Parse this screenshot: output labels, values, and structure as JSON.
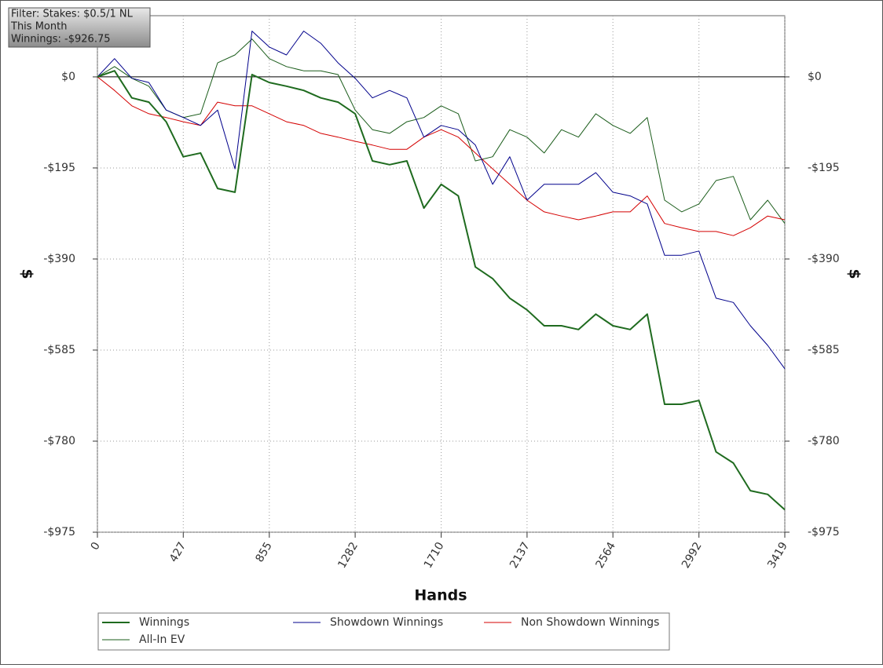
{
  "chart_data": {
    "type": "line",
    "annotations": [
      "Filter: Stakes: $0.5/1 NL",
      "This Month",
      "Winnings: -$926.75"
    ],
    "x_label": "Hands",
    "y_label": "$",
    "x": [
      0,
      85,
      171,
      256,
      342,
      427,
      513,
      598,
      684,
      769,
      855,
      940,
      1026,
      1111,
      1197,
      1282,
      1368,
      1453,
      1539,
      1624,
      1710,
      1795,
      1880,
      1966,
      2051,
      2137,
      2222,
      2308,
      2393,
      2479,
      2564,
      2650,
      2735,
      2821,
      2906,
      2992,
      3077,
      3163,
      3248,
      3334,
      3419
    ],
    "series": [
      {
        "name": "Winnings",
        "color": "#1f6b1f",
        "line_width": 2,
        "values": [
          0,
          13,
          -45,
          -54,
          -96,
          -171,
          -163,
          -239,
          -247,
          5,
          -12,
          -20,
          -29,
          -45,
          -54,
          -79,
          -180,
          -188,
          -180,
          -281,
          -230,
          -255,
          -407,
          -432,
          -474,
          -499,
          -533,
          -533,
          -541,
          -508,
          -533,
          -541,
          -508,
          -701,
          -701,
          -693,
          -803,
          -827,
          -886,
          -894,
          -927
        ]
      },
      {
        "name": "Showdown Winnings",
        "color": "#00008b",
        "line_width": 1,
        "values": [
          0,
          39,
          -3,
          -12,
          -71,
          -87,
          -104,
          -71,
          -197,
          98,
          64,
          47,
          98,
          72,
          30,
          -3,
          -45,
          -29,
          -45,
          -129,
          -104,
          -113,
          -146,
          -230,
          -171,
          -264,
          -230,
          -230,
          -230,
          -205,
          -247,
          -255,
          -272,
          -382,
          -382,
          -373,
          -474,
          -483,
          -533,
          -575,
          -625
        ]
      },
      {
        "name": "Non Showdown Winnings",
        "color": "#d40000",
        "line_width": 1,
        "values": [
          0,
          -29,
          -62,
          -79,
          -87,
          -96,
          -104,
          -54,
          -62,
          -62,
          -79,
          -96,
          -104,
          -121,
          -129,
          -138,
          -146,
          -155,
          -155,
          -129,
          -113,
          -129,
          -163,
          -197,
          -230,
          -264,
          -289,
          -298,
          -306,
          -298,
          -289,
          -289,
          -255,
          -314,
          -323,
          -331,
          -331,
          -340,
          -323,
          -298,
          -306
        ]
      },
      {
        "name": "All-In EV",
        "color": "#1a5c1a",
        "line_width": 1,
        "values": [
          0,
          22,
          -3,
          -20,
          -71,
          -87,
          -79,
          30,
          47,
          81,
          39,
          22,
          13,
          13,
          5,
          -71,
          -113,
          -121,
          -96,
          -87,
          -62,
          -79,
          -180,
          -171,
          -113,
          -129,
          -163,
          -113,
          -129,
          -79,
          -104,
          -121,
          -87,
          -264,
          -289,
          -272,
          -222,
          -213,
          -306,
          -264,
          -314
        ]
      }
    ],
    "xlim": [
      0,
      3419
    ],
    "xticks": [
      0,
      427,
      855,
      1282,
      1710,
      2137,
      2564,
      2992,
      3419
    ],
    "ylim": [
      -975,
      131
    ],
    "yticks": [
      {
        "value": 0,
        "label": "$0"
      },
      {
        "value": -195,
        "label": "-$195"
      },
      {
        "value": -390,
        "label": "-$390"
      },
      {
        "value": -585,
        "label": "-$585"
      },
      {
        "value": -780,
        "label": "-$780"
      },
      {
        "value": -975,
        "label": "-$975"
      }
    ],
    "grid": true
  }
}
